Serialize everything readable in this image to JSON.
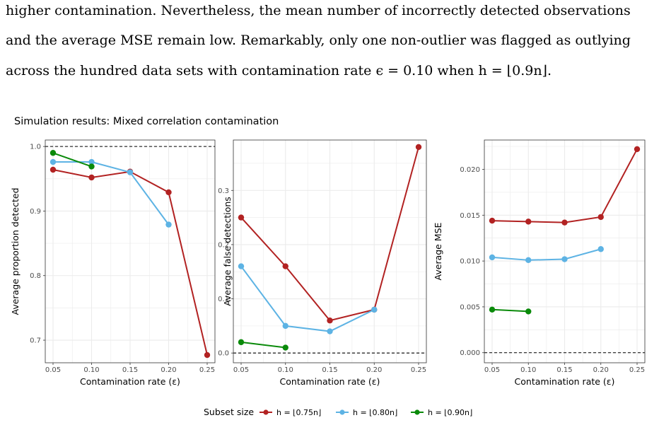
{
  "paragraph": {
    "line1": "higher contamination. Nevertheless, the mean number of incorrectly detected observations",
    "line2": "and the average MSE remain low. Remarkably, only one non-outlier was flagged as outlying",
    "line3": "across the hundred data sets with contamination rate ϵ = 0.10 when h = ⌊0.9n⌋."
  },
  "figure_title": "Simulation results: Mixed correlation contamination",
  "colors": {
    "h075": "#b22222",
    "h080": "#5db3e4",
    "h090": "#0a8a0a",
    "refline": "#000000",
    "grid": "#ebebeb"
  },
  "legend": {
    "title": "Subset size",
    "entries": [
      "h = ⌊0.75n⌋",
      "h = ⌊0.80n⌋",
      "h = ⌊0.90n⌋"
    ]
  },
  "chart_data": [
    {
      "type": "line",
      "xlabel": "Contamination rate (ε)",
      "ylabel": "Average proportion detected",
      "xlim": [
        0.05,
        0.25
      ],
      "ylim": [
        0.665,
        1.01
      ],
      "xticks": [
        "0.05",
        "0.10",
        "0.15",
        "0.20",
        "0.25"
      ],
      "yticks": [
        "0.7",
        "0.8",
        "0.9",
        "1.0"
      ],
      "refline": 1.0,
      "series": [
        {
          "name": "h = ⌊0.75n⌋",
          "x": [
            0.05,
            0.1,
            0.15,
            0.2,
            0.25
          ],
          "values": [
            0.964,
            0.952,
            0.961,
            0.929,
            0.677
          ]
        },
        {
          "name": "h = ⌊0.80n⌋",
          "x": [
            0.05,
            0.1,
            0.15,
            0.2
          ],
          "values": [
            0.976,
            0.976,
            0.96,
            0.879
          ]
        },
        {
          "name": "h = ⌊0.90n⌋",
          "x": [
            0.05,
            0.1
          ],
          "values": [
            0.99,
            0.969
          ]
        }
      ]
    },
    {
      "type": "line",
      "xlabel": "Contamination rate (ε)",
      "ylabel": "Average false detections",
      "xlim": [
        0.05,
        0.25
      ],
      "ylim": [
        -0.018,
        0.393
      ],
      "xticks": [
        "0.05",
        "0.10",
        "0.15",
        "0.20",
        "0.25"
      ],
      "yticks": [
        "0.0",
        "0.1",
        "0.2",
        "0.3"
      ],
      "refline": 0.0,
      "series": [
        {
          "name": "h = ⌊0.75n⌋",
          "x": [
            0.05,
            0.1,
            0.15,
            0.2,
            0.25
          ],
          "values": [
            0.25,
            0.16,
            0.06,
            0.08,
            0.38
          ]
        },
        {
          "name": "h = ⌊0.80n⌋",
          "x": [
            0.05,
            0.1,
            0.15,
            0.2
          ],
          "values": [
            0.16,
            0.05,
            0.04,
            0.08
          ]
        },
        {
          "name": "h = ⌊0.90n⌋",
          "x": [
            0.05,
            0.1
          ],
          "values": [
            0.02,
            0.01
          ]
        }
      ]
    },
    {
      "type": "line",
      "xlabel": "Contamination rate (ε)",
      "ylabel": "Average MSE",
      "xlim": [
        0.05,
        0.25
      ],
      "ylim": [
        -0.0011,
        0.0232
      ],
      "xticks": [
        "0.05",
        "0.10",
        "0.15",
        "0.20",
        "0.25"
      ],
      "yticks": [
        "0.000",
        "0.005",
        "0.010",
        "0.015",
        "0.020"
      ],
      "refline": 0.0,
      "series": [
        {
          "name": "h = ⌊0.75n⌋",
          "x": [
            0.05,
            0.1,
            0.15,
            0.2,
            0.25
          ],
          "values": [
            0.0144,
            0.0143,
            0.0142,
            0.0148,
            0.0222
          ]
        },
        {
          "name": "h = ⌊0.80n⌋",
          "x": [
            0.05,
            0.1,
            0.15,
            0.2
          ],
          "values": [
            0.0104,
            0.0101,
            0.0102,
            0.0113
          ]
        },
        {
          "name": "h = ⌊0.90n⌋",
          "x": [
            0.05,
            0.1
          ],
          "values": [
            0.0047,
            0.0045
          ]
        }
      ]
    }
  ]
}
